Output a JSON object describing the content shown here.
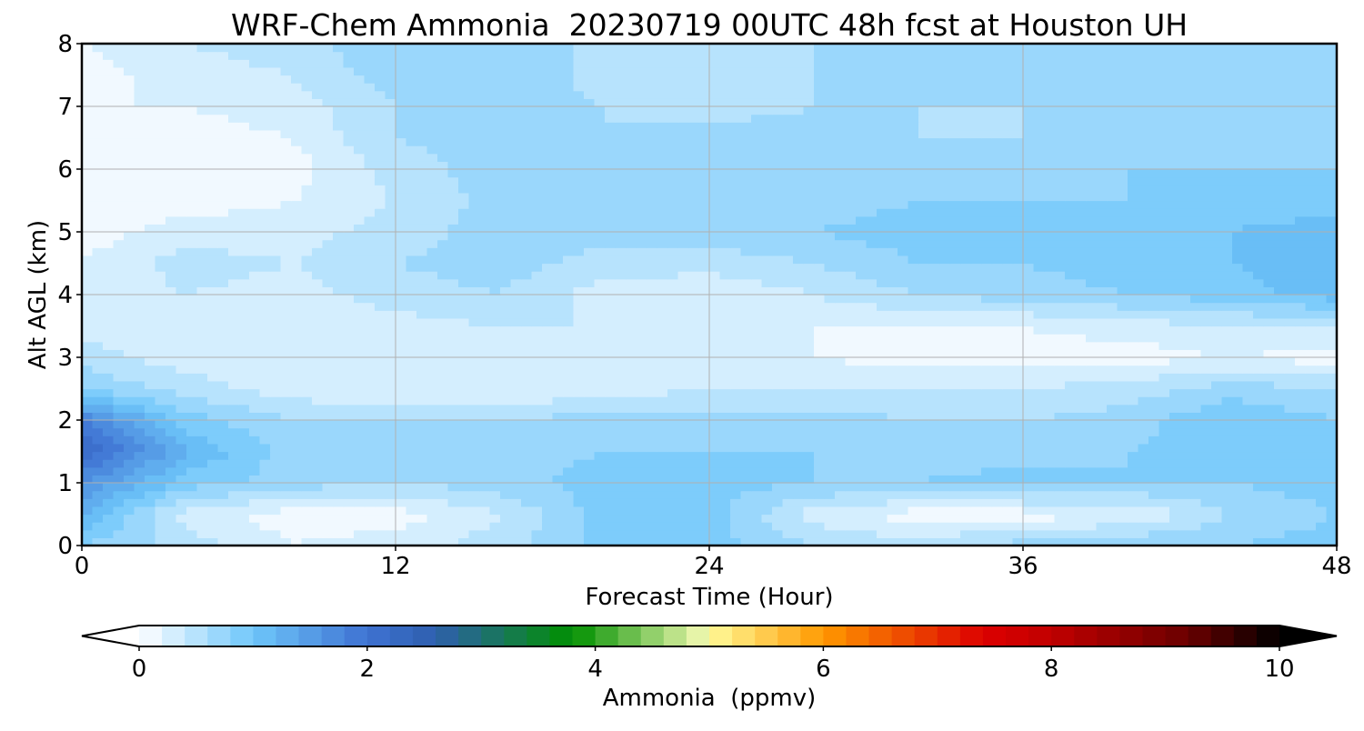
{
  "chart_data": {
    "type": "heatmap",
    "title": "WRF-Chem Ammonia  20230719 00UTC 48h fcst at Houston UH",
    "xlabel": "Forecast Time (Hour)",
    "ylabel": "Alt AGL (km)",
    "xlim": [
      0,
      48
    ],
    "ylim": [
      0,
      8
    ],
    "xticks": [
      0,
      12,
      24,
      36,
      48
    ],
    "yticks": [
      0,
      1,
      2,
      3,
      4,
      5,
      6,
      7,
      8
    ],
    "grid": true,
    "x": [
      0,
      4,
      8,
      12,
      16,
      20,
      24,
      28,
      32,
      36,
      40,
      44,
      48
    ],
    "y": [
      0,
      0.5,
      1,
      1.5,
      2,
      2.5,
      3,
      3.5,
      4,
      4.5,
      5,
      5.5,
      6,
      6.5,
      7,
      7.5,
      8
    ],
    "z": [
      [
        0.8,
        0.5,
        0.2,
        0.3,
        0.5,
        0.9,
        0.9,
        0.6,
        0.5,
        0.7,
        0.8,
        0.8,
        0.9
      ],
      [
        1.2,
        0.3,
        0.1,
        0.1,
        0.4,
        0.9,
        0.9,
        0.3,
        0.1,
        0.1,
        0.2,
        0.6,
        0.8
      ],
      [
        1.6,
        0.9,
        0.7,
        0.6,
        0.7,
        0.9,
        0.9,
        0.8,
        0.8,
        0.9,
        0.8,
        0.8,
        0.9
      ],
      [
        2.2,
        1.2,
        0.7,
        0.6,
        0.7,
        0.8,
        0.8,
        0.8,
        0.7,
        0.7,
        0.8,
        0.9,
        0.9
      ],
      [
        1.8,
        0.9,
        0.6,
        0.6,
        0.6,
        0.7,
        0.7,
        0.7,
        0.6,
        0.6,
        0.7,
        1.0,
        0.8
      ],
      [
        0.8,
        0.5,
        0.3,
        0.2,
        0.2,
        0.3,
        0.4,
        0.4,
        0.4,
        0.4,
        0.5,
        0.7,
        0.6
      ],
      [
        0.5,
        0.3,
        0.2,
        0.2,
        0.2,
        0.3,
        0.3,
        0.2,
        0.1,
        0.1,
        0.1,
        0.2,
        0.1
      ],
      [
        0.3,
        0.2,
        0.2,
        0.3,
        0.4,
        0.4,
        0.3,
        0.2,
        0.2,
        0.2,
        0.3,
        0.4,
        0.4
      ],
      [
        0.2,
        0.4,
        0.3,
        0.5,
        0.6,
        0.3,
        0.2,
        0.4,
        0.6,
        0.7,
        0.8,
        0.9,
        1.1
      ],
      [
        0.2,
        0.5,
        0.4,
        0.6,
        0.7,
        0.5,
        0.5,
        0.6,
        0.8,
        0.8,
        0.9,
        1.0,
        1.2
      ],
      [
        0.1,
        0.3,
        0.3,
        0.5,
        0.7,
        0.7,
        0.7,
        0.8,
        0.9,
        0.8,
        0.9,
        1.0,
        1.1
      ],
      [
        0.1,
        0.1,
        0.2,
        0.4,
        0.7,
        0.7,
        0.7,
        0.7,
        0.8,
        0.8,
        0.8,
        0.9,
        0.9
      ],
      [
        0.1,
        0.1,
        0.1,
        0.5,
        0.7,
        0.7,
        0.7,
        0.7,
        0.7,
        0.7,
        0.8,
        0.8,
        0.8
      ],
      [
        0.1,
        0.1,
        0.2,
        0.6,
        0.7,
        0.6,
        0.7,
        0.7,
        0.6,
        0.6,
        0.7,
        0.7,
        0.7
      ],
      [
        0.2,
        0.2,
        0.3,
        0.6,
        0.7,
        0.6,
        0.5,
        0.6,
        0.6,
        0.6,
        0.7,
        0.7,
        0.7
      ],
      [
        0.1,
        0.3,
        0.4,
        0.7,
        0.8,
        0.5,
        0.4,
        0.6,
        0.7,
        0.6,
        0.7,
        0.7,
        0.7
      ],
      [
        0.2,
        0.4,
        0.5,
        0.8,
        0.8,
        0.5,
        0.5,
        0.6,
        0.7,
        0.7,
        0.7,
        0.7,
        0.7
      ]
    ],
    "colorbar": {
      "label": "Ammonia  (ppmv)",
      "min": 0,
      "max": 10,
      "ticks": [
        0,
        2,
        4,
        6,
        8,
        10
      ],
      "extend": "both",
      "levels_step": 0.2,
      "color_stops": [
        {
          "v": 0,
          "c": "#ffffff"
        },
        {
          "v": 1,
          "c": "#6ec6fa"
        },
        {
          "v": 2,
          "c": "#3e72d2"
        },
        {
          "v": 2.6,
          "c": "#2f5fae"
        },
        {
          "v": 3.8,
          "c": "#009000"
        },
        {
          "v": 4.9,
          "c": "#e6f4a8"
        },
        {
          "v": 5.0,
          "c": "#fffb99"
        },
        {
          "v": 6.0,
          "c": "#ff9900"
        },
        {
          "v": 7.4,
          "c": "#dd0000"
        },
        {
          "v": 8.0,
          "c": "#c00000"
        },
        {
          "v": 9.2,
          "c": "#6a0000"
        },
        {
          "v": 10,
          "c": "#000000"
        }
      ]
    }
  }
}
